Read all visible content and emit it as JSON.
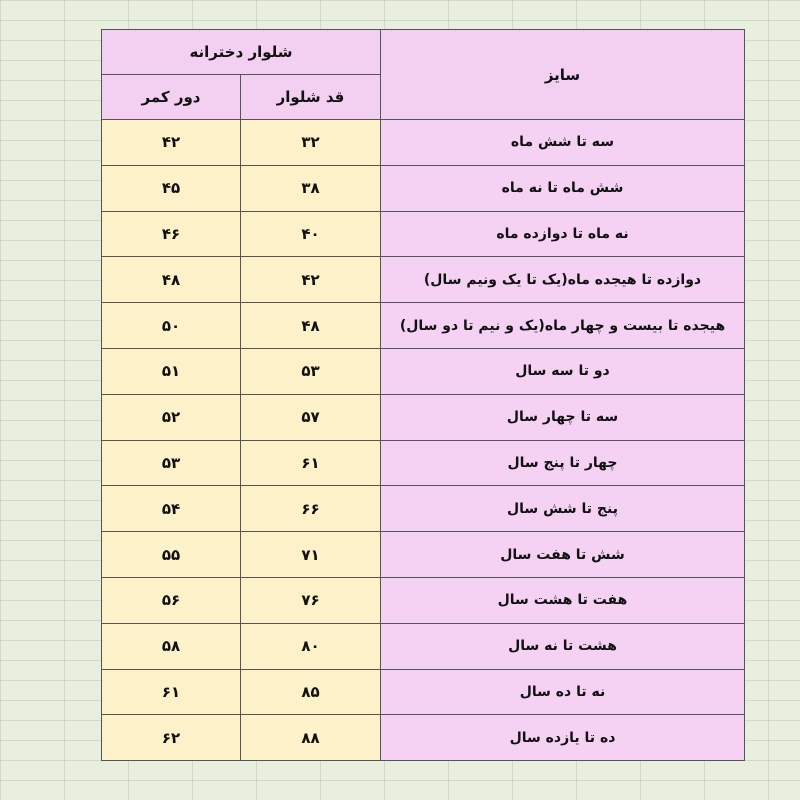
{
  "table": {
    "header": {
      "size": "سایز",
      "group": "شلوار دخترانه",
      "length": "قد شلوار",
      "waist": "دور کمر"
    },
    "rows": [
      [
        "سه تا شش ماه",
        "۳۲",
        "۴۲"
      ],
      [
        "شش ماه تا نه ماه",
        "۳۸",
        "۴۵"
      ],
      [
        "نه ماه تا دوازده ماه",
        "۴۰",
        "۴۶"
      ],
      [
        "دوازده تا هیجده ماه(یک تا یک ونیم سال)",
        "۴۲",
        "۴۸"
      ],
      [
        "هیجده تا بیست و چهار ماه(یک و نیم تا دو سال)",
        "۴۸",
        "۵۰"
      ],
      [
        "دو تا سه سال",
        "۵۳",
        "۵۱"
      ],
      [
        "سه تا چهار سال",
        "۵۷",
        "۵۲"
      ],
      [
        "چهار تا پنج سال",
        "۶۱",
        "۵۳"
      ],
      [
        "پنج تا شش سال",
        "۶۶",
        "۵۴"
      ],
      [
        "شش تا هفت سال",
        "۷۱",
        "۵۵"
      ],
      [
        "هفت تا هشت سال",
        "۷۶",
        "۵۶"
      ],
      [
        "هشت تا نه سال",
        "۸۰",
        "۵۸"
      ],
      [
        "نه تا ده سال",
        "۸۵",
        "۶۱"
      ],
      [
        "ده تا یازده سال",
        "۸۸",
        "۶۲"
      ]
    ]
  }
}
